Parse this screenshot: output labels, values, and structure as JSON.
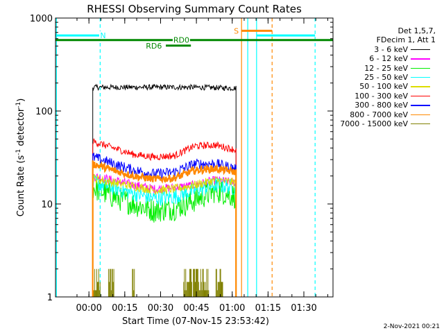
{
  "chart_data": {
    "type": "line",
    "title": "RHESSI Observing Summary Count Rates",
    "xlabel": "Start Time (07-Nov-15 23:53:42)",
    "ylabel_main": "Count Rate (s",
    "ylabel_exp1": "-1",
    "ylabel_mid": " detector",
    "ylabel_exp2": "-1",
    "ylabel_end": ")",
    "y_scale": "log",
    "ylim": [
      1,
      1000
    ],
    "xlim_minutes": [
      -7.7,
      108.5
    ],
    "x_ticks": [
      {
        "minute": 6.3,
        "label": "00:00"
      },
      {
        "minute": 21.3,
        "label": "00:15"
      },
      {
        "minute": 36.3,
        "label": "00:30"
      },
      {
        "minute": 51.3,
        "label": "00:45"
      },
      {
        "minute": 66.3,
        "label": "01:00"
      },
      {
        "minute": 81.3,
        "label": "01:15"
      },
      {
        "minute": 96.3,
        "label": "01:30"
      }
    ],
    "y_ticks": [
      {
        "value": 1,
        "label": "1"
      },
      {
        "value": 10,
        "label": "10"
      },
      {
        "value": 100,
        "label": "100"
      },
      {
        "value": 1000,
        "label": "1000"
      }
    ],
    "legend_header": [
      "Det 1,5,7,",
      "FDecim 1, Att 1"
    ],
    "data_start_minute": 7.9,
    "data_end_minute": 67.9,
    "series": [
      {
        "name": "3 - 6 keV",
        "color": "#000000",
        "base": [
          180,
          180,
          180,
          180,
          180,
          180,
          178,
          176
        ],
        "noise": 0.03
      },
      {
        "name": "6 - 12 keV",
        "color": "#ff00ff",
        "base": [
          20,
          18,
          16,
          14.5,
          15,
          16,
          18,
          17
        ],
        "noise": 0.05
      },
      {
        "name": "12 - 25 keV",
        "color": "#00ee00",
        "base": [
          15,
          12,
          10,
          8.5,
          9,
          11,
          14,
          12
        ],
        "noise": 0.14
      },
      {
        "name": "25 - 50 keV",
        "color": "#00ffff",
        "base": [
          17,
          15,
          13,
          11.5,
          12,
          14,
          16,
          15
        ],
        "noise": 0.09
      },
      {
        "name": "50 - 100 keV",
        "color": "#dddd00",
        "base": [
          19,
          17,
          15.5,
          14,
          14.5,
          16,
          18,
          17
        ],
        "noise": 0.05
      },
      {
        "name": "100 - 300 keV",
        "color": "#ff0000",
        "base": [
          47,
          40,
          34,
          32,
          33,
          42,
          43,
          38
        ],
        "noise": 0.04
      },
      {
        "name": "300 - 800 keV",
        "color": "#0000ff",
        "base": [
          32,
          27,
          23,
          21,
          22,
          27,
          27,
          24
        ],
        "noise": 0.06
      },
      {
        "name": "800 - 7000 keV",
        "color": "#ff8800",
        "base": [
          27,
          23,
          20,
          18.5,
          19,
          23,
          24,
          22
        ],
        "noise": 0.04
      },
      {
        "name": "7000 - 15000 keV",
        "color": "#808000",
        "base": [
          1,
          1,
          1,
          1,
          1,
          1,
          1,
          1
        ],
        "noise": 0
      }
    ],
    "flags": [
      {
        "label": "N",
        "color": "#00ffff",
        "level": 650,
        "segments": [
          [
            -7.7,
            11.0
          ],
          [
            76.5,
            101.0
          ]
        ],
        "label_minute": 12.2
      },
      {
        "label": "S",
        "color": "#ff8800",
        "level": 730,
        "segments": [
          [
            70.0,
            83.0
          ]
        ],
        "label_minute": 68.0
      },
      {
        "label": "RD0",
        "color": "#008800",
        "level": 580,
        "segments": [
          [
            -7.7,
            108.5
          ]
        ],
        "label_minute": 45.0
      },
      {
        "label": "RD6",
        "color": "#008800",
        "level": 505,
        "segments": [
          [
            38.5,
            49.0
          ]
        ],
        "label_minute": 33.5
      }
    ],
    "vlines": [
      {
        "minute": -7.3,
        "color": "#00ffff",
        "dashed": false
      },
      {
        "minute": 11.0,
        "color": "#00ffff",
        "dashed": true
      },
      {
        "minute": 70.2,
        "color": "#ff8800",
        "dashed": false
      },
      {
        "minute": 72.8,
        "color": "#00ffff",
        "dashed": false
      },
      {
        "minute": 76.5,
        "color": "#00ffff",
        "dashed": false
      },
      {
        "minute": 83.0,
        "color": "#ff8800",
        "dashed": true
      },
      {
        "minute": 101.0,
        "color": "#00ffff",
        "dashed": true
      }
    ],
    "spike_ranges": [
      [
        7.9,
        11.0
      ],
      [
        14.5,
        17.0
      ],
      [
        24.5,
        25.5
      ],
      [
        46.0,
        49.5
      ],
      [
        50.0,
        56.5
      ],
      [
        59.5,
        62.5
      ]
    ]
  },
  "legend": {
    "header_line1": "Det 1,5,7,",
    "header_line2": "FDecim 1, Att 1",
    "items": [
      {
        "label": "3 - 6 keV",
        "color": "#000000"
      },
      {
        "label": "6 - 12 keV",
        "color": "#ff00ff"
      },
      {
        "label": "12 - 25 keV",
        "color": "#00ee00"
      },
      {
        "label": "25 - 50 keV",
        "color": "#00ffff"
      },
      {
        "label": "50 - 100 keV",
        "color": "#dddd00"
      },
      {
        "label": "100 - 300 keV",
        "color": "#ff0000"
      },
      {
        "label": "300 - 800 keV",
        "color": "#0000ff"
      },
      {
        "label": "800 - 7000 keV",
        "color": "#ff8800"
      },
      {
        "label": "7000 - 15000 keV",
        "color": "#808000"
      }
    ]
  },
  "footer": {
    "stamp": "2-Nov-2021 00:21"
  }
}
